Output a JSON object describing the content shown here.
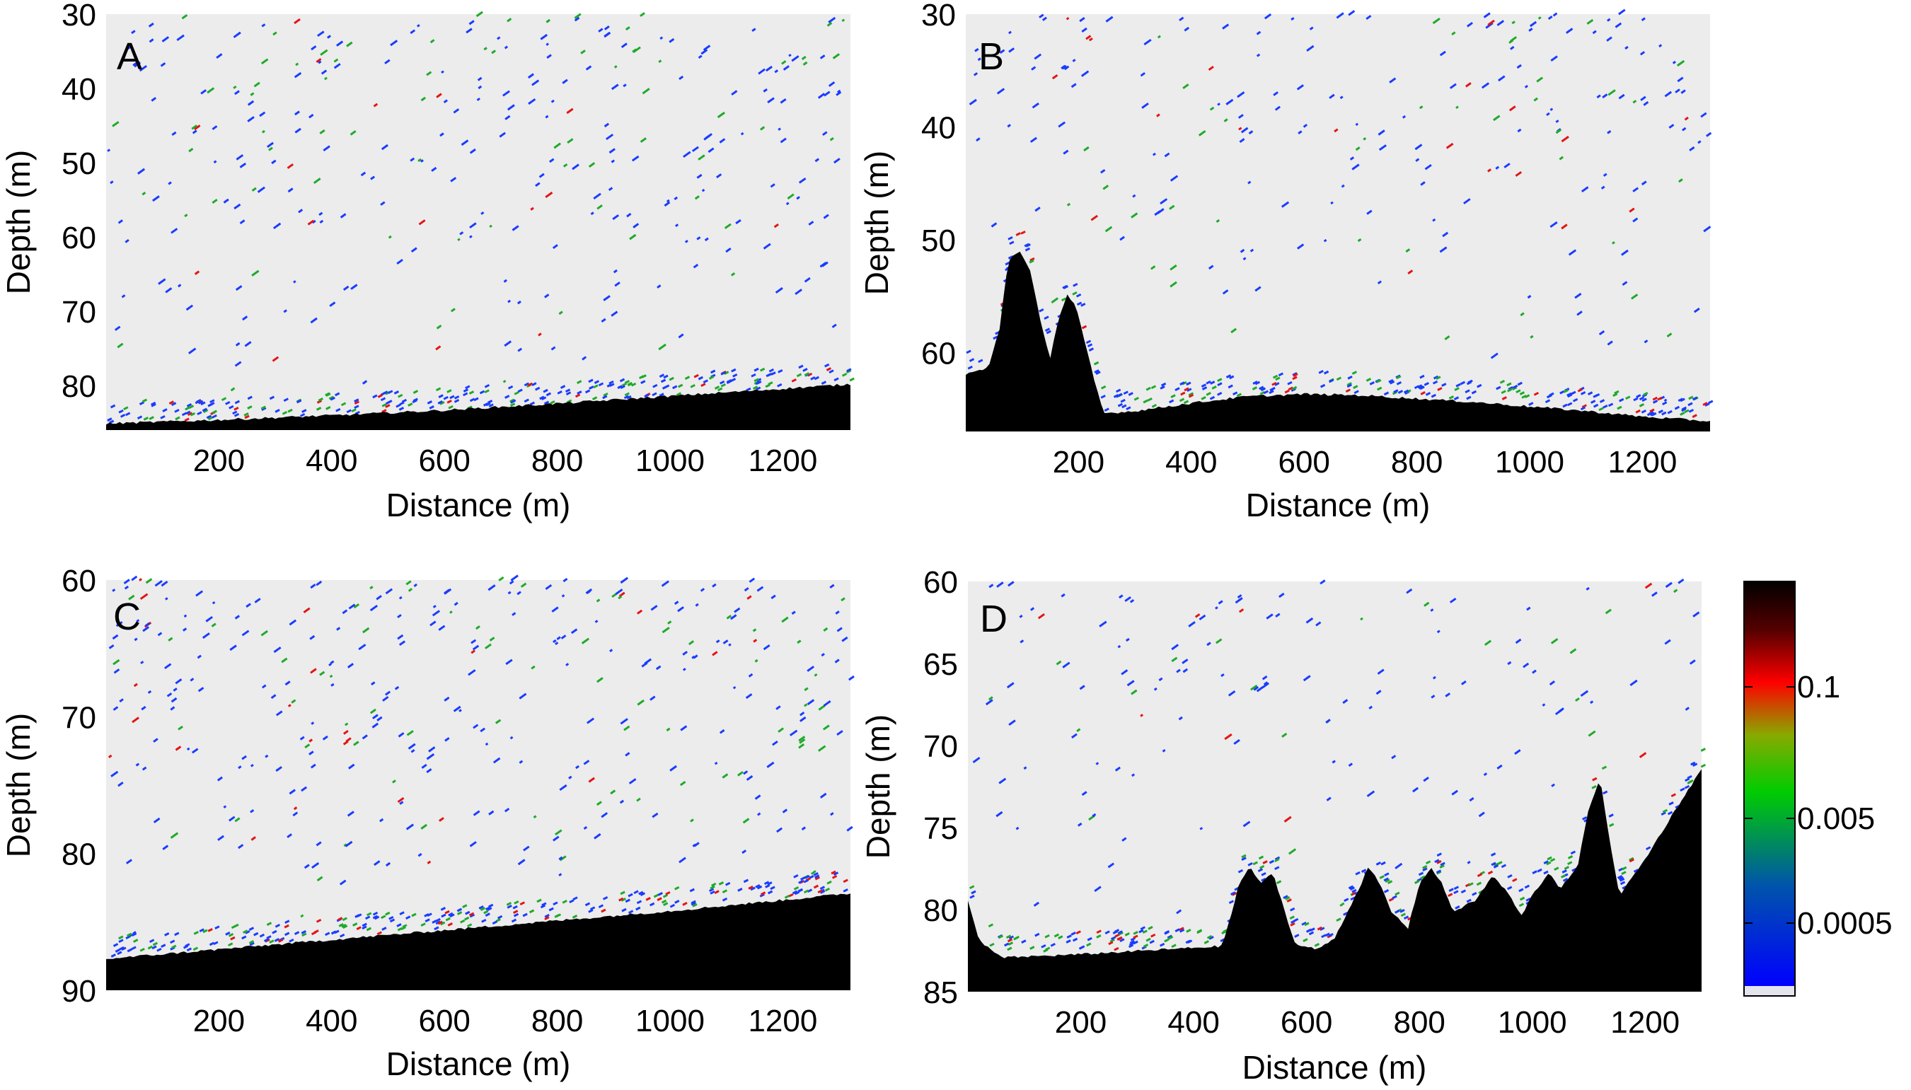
{
  "chart_data": [
    {
      "type": "heatmap",
      "panel_label": "A",
      "xlabel": "Distance (m)",
      "ylabel": "Depth (m)",
      "xlim": [
        0,
        1320
      ],
      "ylim": [
        86,
        30
      ],
      "x_ticks": [
        200,
        400,
        600,
        800,
        1000,
        1200
      ],
      "y_ticks": [
        30,
        40,
        50,
        60,
        70,
        80
      ],
      "seabed_profile": [
        [
          0,
          85.3
        ],
        [
          200,
          84.8
        ],
        [
          400,
          84.2
        ],
        [
          600,
          83.5
        ],
        [
          800,
          82.6
        ],
        [
          1000,
          81.6
        ],
        [
          1200,
          80.6
        ],
        [
          1320,
          80.0
        ]
      ],
      "scatter_depth_range": [
        30,
        84
      ],
      "scatter_density": 0.75
    },
    {
      "type": "heatmap",
      "panel_label": "B",
      "xlabel": "Distance (m)",
      "ylabel": "Depth (m)",
      "xlim": [
        0,
        1320
      ],
      "ylim": [
        67,
        30
      ],
      "x_ticks": [
        200,
        400,
        600,
        800,
        1000,
        1200
      ],
      "y_ticks": [
        30,
        40,
        50,
        60
      ],
      "seabed_profile": [
        [
          0,
          62.0
        ],
        [
          40,
          61.5
        ],
        [
          60,
          58
        ],
        [
          75,
          52
        ],
        [
          95,
          51
        ],
        [
          115,
          53
        ],
        [
          135,
          58
        ],
        [
          150,
          60.5
        ],
        [
          165,
          57
        ],
        [
          180,
          55
        ],
        [
          195,
          56
        ],
        [
          210,
          59
        ],
        [
          230,
          63
        ],
        [
          245,
          65.5
        ],
        [
          300,
          65.3
        ],
        [
          400,
          64.6
        ],
        [
          500,
          64.0
        ],
        [
          600,
          63.8
        ],
        [
          700,
          63.9
        ],
        [
          800,
          64.2
        ],
        [
          900,
          64.5
        ],
        [
          1000,
          64.9
        ],
        [
          1100,
          65.3
        ],
        [
          1200,
          65.8
        ],
        [
          1320,
          66.2
        ]
      ],
      "scatter_depth_range": [
        30,
        65
      ],
      "scatter_density": 0.55
    },
    {
      "type": "heatmap",
      "panel_label": "C",
      "xlabel": "Distance (m)",
      "ylabel": "Depth (m)",
      "xlim": [
        0,
        1320
      ],
      "ylim": [
        90,
        60
      ],
      "x_ticks": [
        200,
        400,
        600,
        800,
        1000,
        1200
      ],
      "y_ticks": [
        60,
        70,
        80,
        90
      ],
      "seabed_profile": [
        [
          0,
          87.8
        ],
        [
          200,
          87.1
        ],
        [
          400,
          86.4
        ],
        [
          600,
          85.7
        ],
        [
          800,
          85.0
        ],
        [
          1000,
          84.3
        ],
        [
          1200,
          83.5
        ],
        [
          1320,
          83.0
        ]
      ],
      "scatter_depth_range": [
        60,
        87
      ],
      "scatter_density": 0.85
    },
    {
      "type": "heatmap",
      "panel_label": "D",
      "xlabel": "Distance (m)",
      "ylabel": "Depth (m)",
      "xlim": [
        0,
        1300
      ],
      "ylim": [
        85,
        60
      ],
      "x_ticks": [
        200,
        400,
        600,
        800,
        1000,
        1200
      ],
      "y_ticks": [
        60,
        65,
        70,
        75,
        80,
        85
      ],
      "seabed_profile": [
        [
          0,
          79.5
        ],
        [
          20,
          82.0
        ],
        [
          60,
          83.0
        ],
        [
          200,
          82.8
        ],
        [
          350,
          82.5
        ],
        [
          450,
          82.3
        ],
        [
          470,
          80
        ],
        [
          480,
          78.5
        ],
        [
          500,
          77.5
        ],
        [
          520,
          78.5
        ],
        [
          540,
          77.8
        ],
        [
          560,
          80
        ],
        [
          580,
          82.2
        ],
        [
          620,
          82.5
        ],
        [
          650,
          81.8
        ],
        [
          690,
          79
        ],
        [
          710,
          77.5
        ],
        [
          730,
          78.5
        ],
        [
          750,
          80.2
        ],
        [
          780,
          81.2
        ],
        [
          800,
          78.5
        ],
        [
          820,
          77.5
        ],
        [
          840,
          78.5
        ],
        [
          860,
          80.2
        ],
        [
          900,
          79.5
        ],
        [
          930,
          78.0
        ],
        [
          960,
          79.2
        ],
        [
          980,
          80.5
        ],
        [
          1000,
          79.2
        ],
        [
          1030,
          77.8
        ],
        [
          1050,
          78.8
        ],
        [
          1080,
          77.5
        ],
        [
          1100,
          74
        ],
        [
          1120,
          72
        ],
        [
          1140,
          76.5
        ],
        [
          1155,
          79.2
        ],
        [
          1200,
          77
        ],
        [
          1250,
          74.2
        ],
        [
          1300,
          71.5
        ]
      ],
      "scatter_depth_range": [
        60,
        82
      ],
      "scatter_density": 0.35
    }
  ],
  "colorbar": {
    "labels": [
      "0.1",
      "0.005",
      "0.0005"
    ],
    "label_values": [
      0.1,
      0.005,
      0.0005
    ],
    "colors": [
      "#000000",
      "#ff0000",
      "#00cc00",
      "#0000ff"
    ]
  },
  "colors": {
    "background": "#ececec",
    "seabed": "#000000",
    "blue": "#1a3cff",
    "green": "#1faa2a",
    "red": "#e41414"
  }
}
